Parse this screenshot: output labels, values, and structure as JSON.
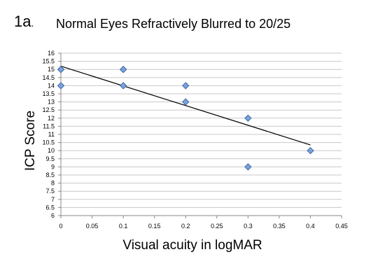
{
  "figure": {
    "panel_label": "1a",
    "panel_label_suffix": "."
  },
  "chart_data": {
    "type": "scatter",
    "title": "Normal Eyes Refractively Blurred to 20/25",
    "xlabel": "Visual acuity in logMAR",
    "ylabel": "ICP Score",
    "xlim": [
      0,
      0.45
    ],
    "ylim": [
      6,
      16
    ],
    "x_ticks": [
      "0",
      "0.05",
      "0.1",
      "0.15",
      "0.2",
      "0.25",
      "0.3",
      "0.35",
      "0.4",
      "0.45"
    ],
    "y_ticks": [
      "6",
      "6.5",
      "7",
      "7.5",
      "8",
      "8.5",
      "9",
      "9.5",
      "10",
      "10.5",
      "11",
      "11.5",
      "12",
      "12.5",
      "13",
      "13.5",
      "14",
      "14.5",
      "15",
      "15.5",
      "16"
    ],
    "grid": true,
    "points": [
      {
        "x": 0,
        "y": 15
      },
      {
        "x": 0,
        "y": 15
      },
      {
        "x": 0,
        "y": 14
      },
      {
        "x": 0.1,
        "y": 15
      },
      {
        "x": 0.1,
        "y": 15
      },
      {
        "x": 0.1,
        "y": 14
      },
      {
        "x": 0.2,
        "y": 14
      },
      {
        "x": 0.2,
        "y": 13
      },
      {
        "x": 0.3,
        "y": 12
      },
      {
        "x": 0.3,
        "y": 9
      },
      {
        "x": 0.4,
        "y": 10
      }
    ],
    "trendline": {
      "type": "linear",
      "x_start": 0,
      "y_start": 15.2,
      "x_end": 0.4,
      "y_end": 10.35
    },
    "colors": {
      "marker_fill": "#7ba3d9",
      "marker_stroke": "#3d6aa8",
      "grid": "#c8c8c8",
      "trendline": "#000000"
    }
  }
}
